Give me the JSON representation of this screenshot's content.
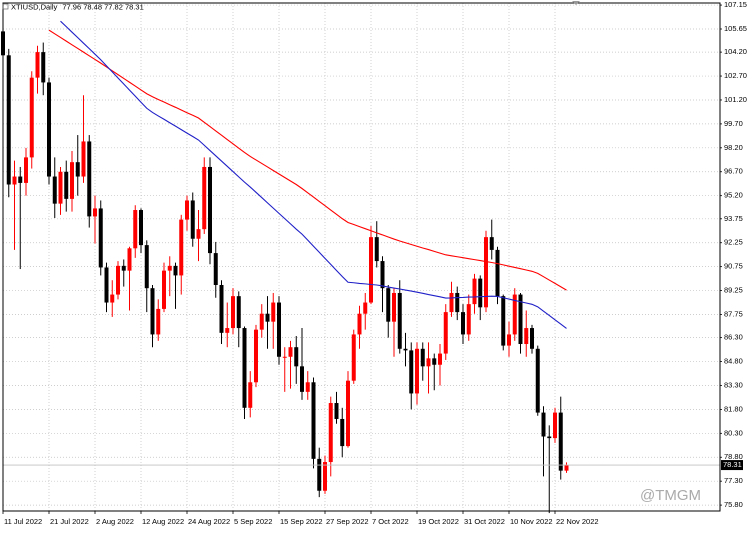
{
  "chart_data": {
    "type": "candlestick",
    "title": "XTIUSD,Daily",
    "watermark": "@TMGM",
    "up_color": "#ff0000",
    "down_color": "#000000",
    "grid": true,
    "categories": [
      "11 Jul 2022",
      null,
      null,
      null,
      null,
      null,
      null,
      null,
      "21 Jul 2022",
      null,
      null,
      null,
      null,
      null,
      null,
      null,
      "2 Aug 2022",
      null,
      null,
      null,
      null,
      null,
      null,
      null,
      "12 Aug 2022",
      null,
      null,
      null,
      null,
      null,
      null,
      null,
      "24 Aug 2022",
      null,
      null,
      null,
      null,
      null,
      null,
      null,
      "5 Sep 2022",
      null,
      null,
      null,
      null,
      null,
      null,
      null,
      "15 Sep 2022",
      null,
      null,
      null,
      null,
      null,
      null,
      null,
      "27 Sep 2022",
      null,
      null,
      null,
      null,
      null,
      null,
      null,
      "7 Oct 2022",
      null,
      null,
      null,
      null,
      null,
      null,
      null,
      "19 Oct 2022",
      null,
      null,
      null,
      null,
      null,
      null,
      null,
      "31 Oct 2022",
      null,
      null,
      null,
      null,
      null,
      null,
      null,
      "10 Nov 2022",
      null,
      null,
      null,
      null,
      null,
      null,
      null,
      "22 Nov 2022",
      null,
      null
    ],
    "open": [
      105.5,
      104.0,
      95.9,
      96.4,
      96.0,
      97.6,
      102.6,
      104.2,
      102.3,
      96.4,
      94.7,
      96.7,
      95.0,
      97.3,
      96.4,
      98.6,
      93.9,
      94.4,
      90.7,
      88.5,
      89.0,
      90.8,
      90.5,
      91.9,
      94.3,
      92.1,
      89.4,
      86.5,
      88.1,
      90.5,
      90.8,
      90.2,
      93.7,
      94.9,
      92.5,
      93.1,
      97.0,
      91.6,
      89.6,
      86.6,
      86.9,
      88.9,
      86.9,
      81.9,
      83.5,
      86.8,
      87.8,
      87.3,
      88.5,
      85.1,
      85.1,
      85.7,
      84.5,
      82.9,
      83.5,
      78.7,
      76.7,
      78.5,
      82.2,
      81.2,
      79.5,
      83.6,
      86.5,
      87.8,
      88.5,
      92.6,
      91.1,
      89.4,
      87.3,
      89.1,
      85.6,
      85.5,
      82.8,
      85.6,
      84.5,
      85.0,
      84.6,
      85.3,
      87.9,
      89.1,
      87.9,
      86.5,
      88.4,
      90.0,
      88.2,
      92.6,
      91.8,
      88.9,
      85.8,
      86.5,
      89.0,
      85.9,
      86.9,
      85.6,
      81.6,
      80.1,
      80.0,
      81.6,
      77.96
    ],
    "high": [
      106.0,
      104.4,
      97.4,
      97.0,
      98.2,
      103.0,
      104.6,
      104.8,
      102.6,
      97.6,
      97.0,
      97.4,
      98.0,
      99.0,
      101.5,
      99.0,
      95.2,
      94.9,
      91.0,
      89.9,
      91.1,
      91.2,
      92.0,
      94.6,
      94.4,
      92.4,
      89.6,
      88.7,
      91.0,
      91.4,
      91.0,
      94.0,
      95.2,
      95.4,
      94.3,
      97.6,
      97.6,
      92.3,
      89.9,
      88.5,
      89.4,
      89.2,
      87.0,
      84.2,
      87.1,
      88.4,
      88.9,
      89.1,
      88.9,
      85.7,
      86.1,
      86.4,
      86.9,
      84.2,
      83.8,
      79.4,
      78.9,
      82.6,
      82.9,
      81.9,
      84.2,
      86.8,
      88.3,
      89.1,
      93.3,
      93.6,
      91.4,
      89.6,
      89.4,
      89.9,
      86.6,
      86.0,
      86.0,
      86.0,
      86.0,
      85.3,
      85.9,
      88.4,
      89.8,
      89.5,
      88.4,
      89.0,
      90.3,
      90.2,
      93.0,
      93.7,
      92.0,
      89.0,
      87.3,
      89.4,
      89.1,
      88.0,
      87.1,
      85.8,
      82.0,
      80.8,
      81.9,
      82.6,
      78.48
    ],
    "low": [
      103.0,
      95.1,
      91.8,
      90.6,
      95.2,
      96.9,
      101.6,
      101.5,
      95.9,
      93.8,
      94.0,
      94.2,
      94.2,
      95.2,
      96.0,
      93.2,
      92.2,
      90.2,
      87.9,
      87.6,
      88.7,
      89.5,
      88.0,
      91.3,
      91.6,
      87.9,
      85.7,
      86.1,
      87.9,
      88.9,
      88.1,
      89.0,
      93.0,
      92.0,
      91.1,
      92.8,
      90.9,
      88.8,
      85.9,
      85.7,
      86.5,
      85.7,
      81.2,
      81.3,
      83.2,
      86.3,
      85.6,
      85.6,
      84.6,
      82.9,
      83.1,
      83.4,
      82.4,
      82.4,
      78.1,
      76.3,
      76.5,
      77.6,
      80.9,
      78.8,
      79.4,
      83.4,
      85.6,
      86.8,
      88.4,
      90.7,
      87.9,
      86.3,
      85.1,
      85.3,
      84.5,
      81.8,
      82.1,
      83.6,
      82.8,
      83.0,
      83.3,
      84.9,
      87.6,
      87.4,
      85.9,
      86.1,
      87.8,
      87.4,
      87.9,
      91.2,
      88.4,
      85.5,
      85.1,
      86.1,
      85.3,
      85.1,
      85.3,
      81.4,
      77.6,
      75.3,
      79.7,
      77.4,
      77.82
    ],
    "close": [
      104.0,
      95.9,
      96.4,
      96.0,
      97.6,
      102.6,
      104.2,
      102.3,
      96.4,
      94.7,
      96.7,
      95.0,
      97.3,
      96.4,
      98.6,
      93.9,
      94.4,
      90.7,
      88.5,
      89.0,
      90.8,
      90.5,
      91.9,
      94.3,
      92.1,
      89.4,
      86.5,
      88.1,
      90.5,
      90.8,
      90.2,
      93.7,
      94.9,
      92.5,
      93.1,
      97.0,
      91.6,
      89.6,
      86.6,
      86.9,
      88.9,
      86.9,
      81.9,
      83.5,
      86.8,
      87.8,
      87.3,
      88.5,
      85.1,
      85.1,
      85.7,
      84.5,
      82.9,
      83.5,
      78.7,
      76.7,
      78.5,
      82.2,
      81.2,
      79.5,
      83.6,
      86.5,
      87.8,
      88.5,
      92.6,
      91.1,
      89.4,
      87.3,
      89.1,
      85.6,
      85.5,
      82.8,
      85.6,
      84.5,
      85.0,
      84.6,
      85.3,
      87.9,
      89.1,
      87.9,
      86.5,
      88.4,
      90.0,
      88.2,
      92.6,
      91.8,
      88.9,
      85.8,
      86.5,
      89.0,
      85.9,
      86.9,
      85.6,
      81.6,
      80.1,
      80.0,
      81.6,
      77.96,
      78.31
    ],
    "moving_averages": [
      {
        "color": "#ff0000",
        "values": [
          null,
          null,
          null,
          null,
          null,
          null,
          null,
          null,
          105.58,
          105.35,
          105.12,
          104.89,
          104.66,
          104.43,
          104.2,
          103.97,
          103.74,
          103.51,
          103.27,
          103.03,
          102.79,
          102.55,
          102.31,
          102.07,
          101.83,
          101.59,
          101.4,
          101.23,
          101.07,
          100.9,
          100.74,
          100.57,
          100.4,
          100.24,
          100.07,
          99.8,
          99.53,
          99.26,
          98.99,
          98.72,
          98.45,
          98.18,
          97.91,
          97.66,
          97.44,
          97.22,
          97.0,
          96.78,
          96.56,
          96.34,
          96.12,
          95.9,
          95.65,
          95.38,
          95.11,
          94.84,
          94.57,
          94.3,
          94.03,
          93.76,
          93.52,
          93.39,
          93.26,
          93.13,
          93.0,
          92.87,
          92.74,
          92.61,
          92.48,
          92.36,
          92.25,
          92.14,
          92.03,
          91.92,
          91.82,
          91.71,
          91.6,
          91.49,
          91.43,
          91.37,
          91.31,
          91.25,
          91.19,
          91.13,
          91.07,
          91.01,
          90.94,
          90.86,
          90.78,
          90.7,
          90.62,
          90.54,
          90.46,
          90.33,
          90.12,
          89.91,
          89.7,
          89.49,
          89.28
        ]
      },
      {
        "color": "#2020c8",
        "values": [
          null,
          null,
          null,
          null,
          null,
          null,
          null,
          null,
          null,
          null,
          106.14,
          105.8,
          105.45,
          105.11,
          104.76,
          104.42,
          104.07,
          103.72,
          103.34,
          102.96,
          102.58,
          102.2,
          101.82,
          101.44,
          101.06,
          100.68,
          100.42,
          100.2,
          99.99,
          99.77,
          99.56,
          99.34,
          99.12,
          98.91,
          98.69,
          98.36,
          98.03,
          97.7,
          97.37,
          97.04,
          96.71,
          96.38,
          96.05,
          95.74,
          95.41,
          95.08,
          94.75,
          94.42,
          94.09,
          93.76,
          93.43,
          93.1,
          92.79,
          92.41,
          92.03,
          91.65,
          91.27,
          90.89,
          90.51,
          90.13,
          89.77,
          89.74,
          89.7,
          89.67,
          89.63,
          89.6,
          89.54,
          89.47,
          89.41,
          89.35,
          89.28,
          89.22,
          89.15,
          89.08,
          89.0,
          88.93,
          88.86,
          88.78,
          88.79,
          88.81,
          88.82,
          88.84,
          88.85,
          88.87,
          88.88,
          88.9,
          88.88,
          88.8,
          88.72,
          88.63,
          88.55,
          88.47,
          88.39,
          88.23,
          87.96,
          87.69,
          87.42,
          87.15,
          86.88
        ]
      }
    ],
    "ylim": [
      75.43,
      107.28
    ],
    "yticks": [
      107.15,
      105.65,
      {
        "value": 104.2,
        "label": "104.20"
      },
      {
        "value": 102.7,
        "label": "102.70"
      },
      {
        "value": 101.2,
        "label": "101.20"
      },
      {
        "value": 99.7,
        "label": "99.70"
      },
      {
        "value": 98.2,
        "label": "98.20"
      },
      {
        "value": 96.7,
        "label": "96.70"
      },
      {
        "value": 95.2,
        "label": "95.20"
      },
      93.75,
      92.25,
      90.75,
      89.25,
      87.75,
      {
        "value": 86.3,
        "label": "86.30"
      },
      {
        "value": 84.8,
        "label": "84.80"
      },
      {
        "value": 83.3,
        "label": "83.30"
      },
      {
        "value": 81.8,
        "label": "81.80"
      },
      {
        "value": 80.3,
        "label": "80.30"
      },
      {
        "value": 78.8,
        "label": "78.80"
      },
      {
        "value": 77.3,
        "label": "77.30"
      },
      {
        "value": 75.8,
        "label": "75.80"
      }
    ]
  }
}
